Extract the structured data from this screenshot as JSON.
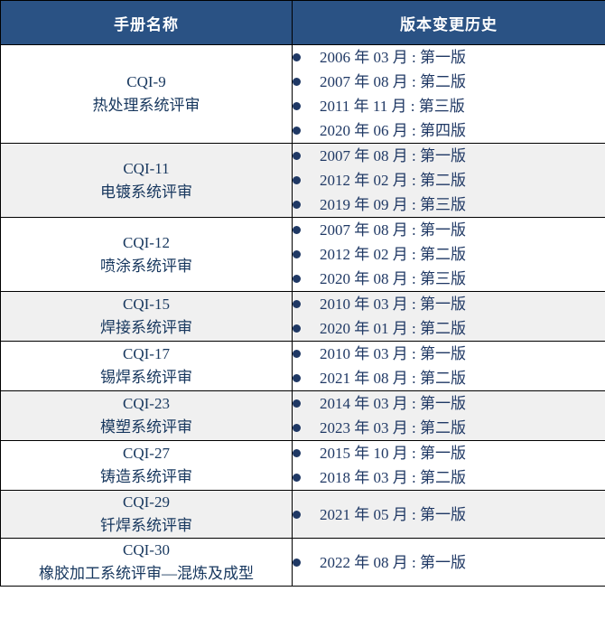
{
  "colors": {
    "header_bg": "#2A5284",
    "header_text": "#FFFFFF",
    "body_text": "#1F3864",
    "manual_text": "#17375E",
    "band": "#F0F0F0",
    "border": "#000000"
  },
  "table": {
    "headers": [
      {
        "label": "手册名称"
      },
      {
        "label": "版本变更历史"
      }
    ],
    "rows": [
      {
        "manual_code": "CQI-9",
        "manual_name": "热处理系统评审",
        "versions": [
          "2006 年 03 月 : 第一版",
          "2007 年 08 月 : 第二版",
          "2011 年 11 月 : 第三版",
          "2020 年 06 月 : 第四版"
        ]
      },
      {
        "manual_code": "CQI-11",
        "manual_name": "电镀系统评审",
        "versions": [
          "2007 年 08 月 : 第一版",
          "2012 年 02 月 : 第二版",
          "2019 年 09 月 : 第三版"
        ]
      },
      {
        "manual_code": "CQI-12",
        "manual_name": "喷涂系统评审",
        "versions": [
          "2007 年 08 月 : 第一版",
          "2012 年 02 月 : 第二版",
          "2020 年 08 月 : 第三版"
        ]
      },
      {
        "manual_code": "CQI-15",
        "manual_name": "焊接系统评审",
        "versions": [
          "2010 年 03 月 : 第一版",
          "2020 年 01 月 : 第二版"
        ]
      },
      {
        "manual_code": "CQI-17",
        "manual_name": "锡焊系统评审",
        "versions": [
          "2010 年 03 月 : 第一版",
          "2021 年 08 月 : 第二版"
        ]
      },
      {
        "manual_code": "CQI-23",
        "manual_name": "模塑系统评审",
        "versions": [
          "2014 年 03 月 : 第一版",
          "2023 年 03 月 : 第二版"
        ]
      },
      {
        "manual_code": "CQI-27",
        "manual_name": "铸造系统评审",
        "versions": [
          "2015 年 10 月 : 第一版",
          "2018 年 03 月 : 第二版"
        ]
      },
      {
        "manual_code": "CQI-29",
        "manual_name": "钎焊系统评审",
        "versions": [
          "2021 年 05 月 : 第一版"
        ]
      },
      {
        "manual_code": "CQI-30",
        "manual_name": "橡胶加工系统评审—混炼及成型",
        "versions": [
          "2022 年 08 月 : 第一版"
        ]
      }
    ]
  }
}
